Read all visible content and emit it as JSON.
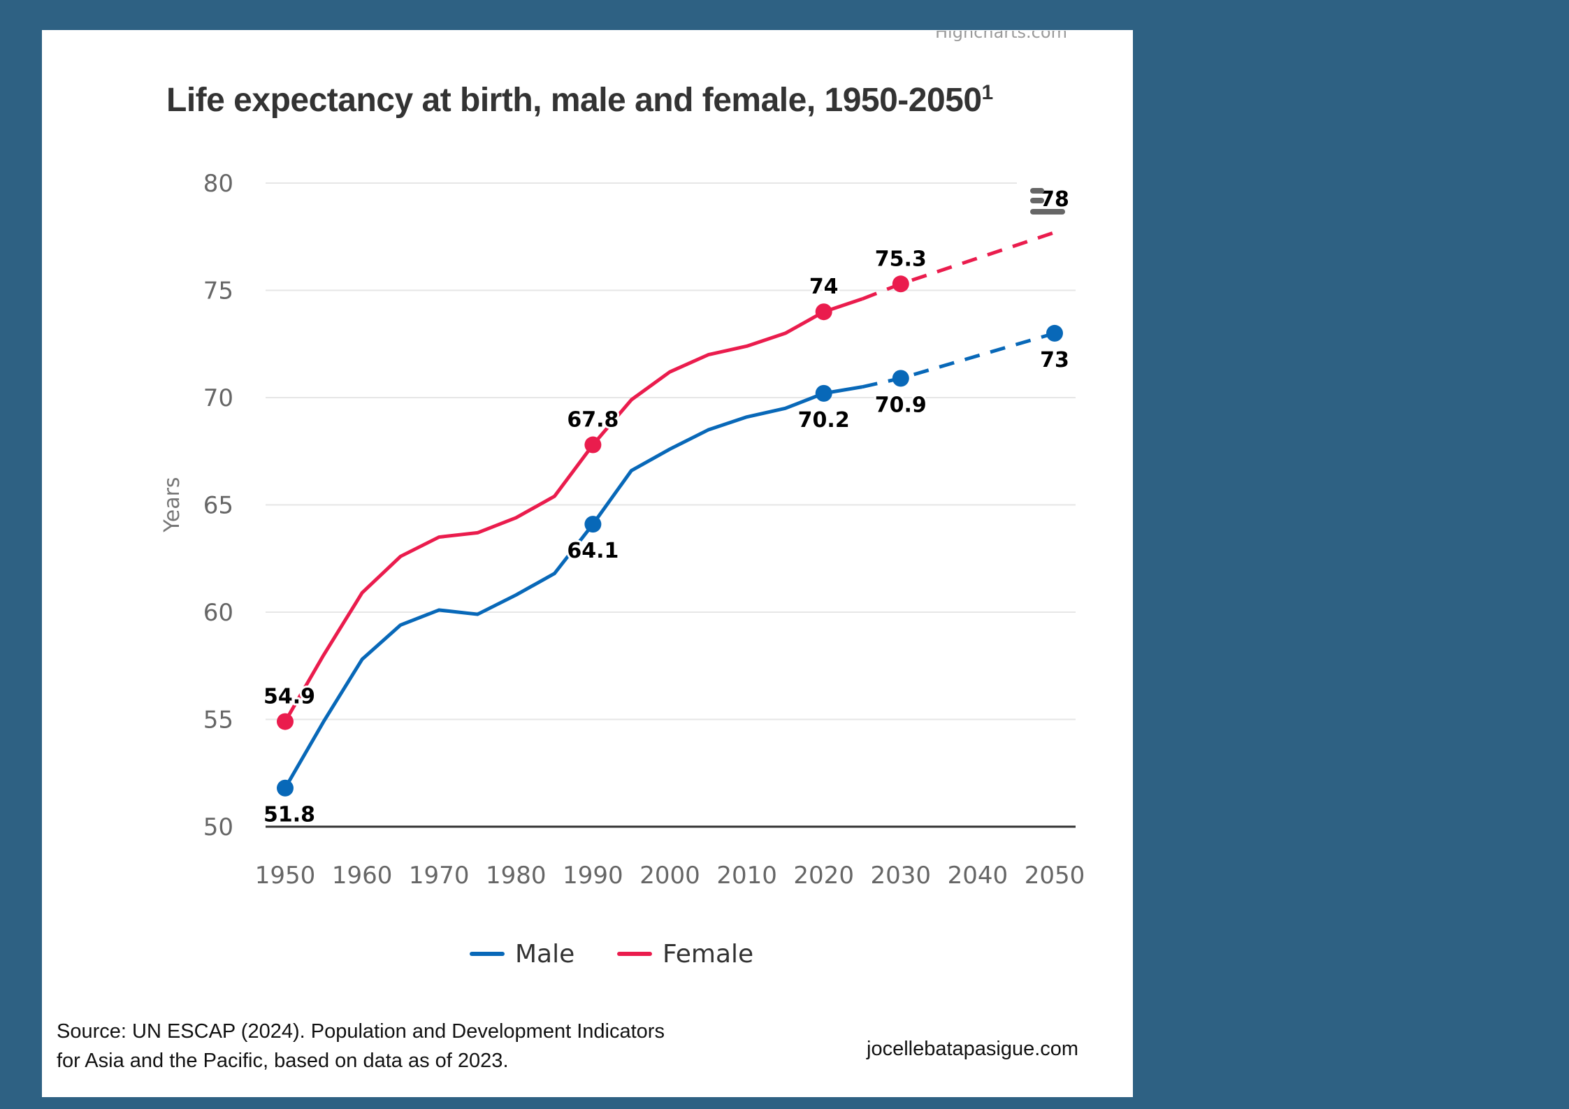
{
  "page": {
    "background_color": "#2E6183",
    "credit": "Highcharts.com",
    "source_line1": "Source: UN ESCAP (2024). Population and Development Indicators",
    "source_line2": "for Asia and the Pacific, based on data as of 2023.",
    "website": "jocellebatapasigue.com",
    "menu_icon": "hamburger-menu-icon"
  },
  "chart_data": {
    "type": "line",
    "title": "Life expectancy at birth, male and female, 1950-2050",
    "title_superscript": "1",
    "xlabel": "",
    "ylabel": "Years",
    "ylim": [
      50,
      80
    ],
    "xlim": [
      1950,
      2050
    ],
    "yticks": [
      50,
      55,
      60,
      65,
      70,
      75,
      80
    ],
    "xticks": [
      1950,
      1960,
      1970,
      1980,
      1990,
      2000,
      2010,
      2020,
      2030,
      2040,
      2050
    ],
    "grid": true,
    "legend_position": "bottom-center",
    "projection_starts": 2025,
    "x": [
      1950,
      1955,
      1960,
      1965,
      1970,
      1975,
      1980,
      1985,
      1990,
      1995,
      2000,
      2005,
      2010,
      2015,
      2020,
      2025,
      2030,
      2050
    ],
    "series": [
      {
        "name": "Male",
        "color": "#0868B8",
        "values": [
          51.8,
          54.9,
          57.8,
          59.4,
          60.1,
          59.9,
          60.8,
          61.8,
          64.1,
          66.6,
          67.6,
          68.5,
          69.1,
          69.5,
          70.2,
          70.5,
          70.9,
          73.0
        ],
        "labeled_points": [
          {
            "x": 1950,
            "y": 51.8,
            "label": "51.8",
            "position": "below"
          },
          {
            "x": 1990,
            "y": 64.1,
            "label": "64.1",
            "position": "below"
          },
          {
            "x": 2020,
            "y": 70.2,
            "label": "70.2",
            "position": "below"
          },
          {
            "x": 2030,
            "y": 70.9,
            "label": "70.9",
            "position": "below"
          },
          {
            "x": 2050,
            "y": 73.0,
            "label": "73",
            "position": "below"
          }
        ]
      },
      {
        "name": "Female",
        "color": "#EA1C4D",
        "values": [
          54.9,
          58.0,
          60.9,
          62.6,
          63.5,
          63.7,
          64.4,
          65.4,
          67.8,
          69.9,
          71.2,
          72.0,
          72.4,
          73.0,
          74.0,
          74.6,
          75.3,
          77.7
        ],
        "labeled_points": [
          {
            "x": 1950,
            "y": 54.9,
            "label": "54.9",
            "position": "above"
          },
          {
            "x": 1990,
            "y": 67.8,
            "label": "67.8",
            "position": "above"
          },
          {
            "x": 2020,
            "y": 74.0,
            "label": "74",
            "position": "above"
          },
          {
            "x": 2030,
            "y": 75.3,
            "label": "75.3",
            "position": "above"
          },
          {
            "x": 2050,
            "y": 77.7,
            "label": "78",
            "position": "above"
          }
        ]
      }
    ]
  }
}
